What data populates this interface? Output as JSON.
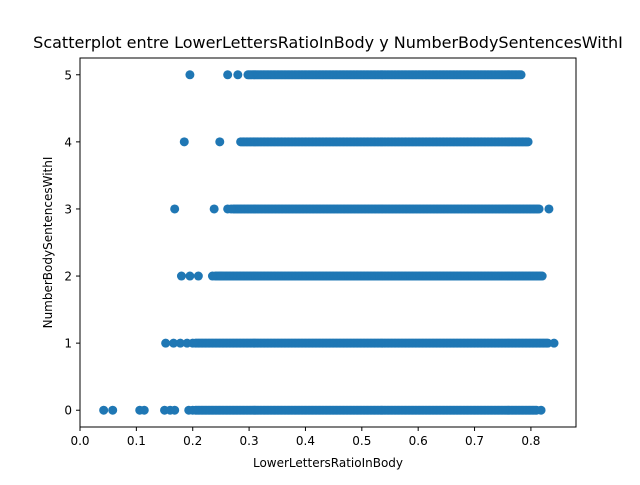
{
  "chart_data": {
    "type": "scatter",
    "title": "Scatterplot entre LowerLettersRatioInBody y NumberBodySentencesWithI",
    "xlabel": "LowerLettersRatioInBody",
    "ylabel": "NumberBodySentencesWithI",
    "xlim": [
      0.0,
      0.88
    ],
    "ylim": [
      -0.25,
      5.25
    ],
    "xticks": [
      0.0,
      0.1,
      0.2,
      0.3,
      0.4,
      0.5,
      0.6,
      0.7,
      0.8
    ],
    "yticks": [
      0,
      1,
      2,
      3,
      4,
      5
    ],
    "xtick_labels": [
      "0.0",
      "0.1",
      "0.2",
      "0.3",
      "0.4",
      "0.5",
      "0.6",
      "0.7",
      "0.8"
    ],
    "ytick_labels": [
      "0",
      "1",
      "2",
      "3",
      "4",
      "5"
    ],
    "grid": false,
    "marker_color": "#1f77b4",
    "series": [
      {
        "points": [
          {
            "y": 5,
            "x": 0.195
          },
          {
            "y": 5,
            "x": 0.262
          },
          {
            "y": 5,
            "x": 0.28
          },
          {
            "y": 5,
            "x": 0.298
          },
          {
            "y": 4,
            "x": 0.185
          },
          {
            "y": 4,
            "x": 0.248
          },
          {
            "y": 3,
            "x": 0.168
          },
          {
            "y": 3,
            "x": 0.238
          },
          {
            "y": 3,
            "x": 0.262
          },
          {
            "y": 3,
            "x": 0.268
          },
          {
            "y": 3,
            "x": 0.832
          },
          {
            "y": 2,
            "x": 0.18
          },
          {
            "y": 2,
            "x": 0.195
          },
          {
            "y": 2,
            "x": 0.21
          },
          {
            "y": 2,
            "x": 0.235
          },
          {
            "y": 2,
            "x": 0.25
          },
          {
            "y": 1,
            "x": 0.152
          },
          {
            "y": 1,
            "x": 0.166
          },
          {
            "y": 1,
            "x": 0.178
          },
          {
            "y": 1,
            "x": 0.19
          },
          {
            "y": 1,
            "x": 0.2
          },
          {
            "y": 1,
            "x": 0.841
          },
          {
            "y": 0,
            "x": 0.042
          },
          {
            "y": 0,
            "x": 0.058
          },
          {
            "y": 0,
            "x": 0.106
          },
          {
            "y": 0,
            "x": 0.114
          },
          {
            "y": 0,
            "x": 0.15
          },
          {
            "y": 0,
            "x": 0.16
          },
          {
            "y": 0,
            "x": 0.168
          },
          {
            "y": 0,
            "x": 0.193
          },
          {
            "y": 0,
            "x": 0.2
          },
          {
            "y": 0,
            "x": 0.818
          }
        ],
        "dense_ranges": [
          {
            "y": 5,
            "x_min": 0.3,
            "x_max": 0.783
          },
          {
            "y": 4,
            "x_min": 0.285,
            "x_max": 0.795
          },
          {
            "y": 3,
            "x_min": 0.272,
            "x_max": 0.815
          },
          {
            "y": 2,
            "x_min": 0.24,
            "x_max": 0.82
          },
          {
            "y": 1,
            "x_min": 0.205,
            "x_max": 0.83
          },
          {
            "y": 0,
            "x_min": 0.205,
            "x_max": 0.812
          }
        ]
      }
    ]
  }
}
